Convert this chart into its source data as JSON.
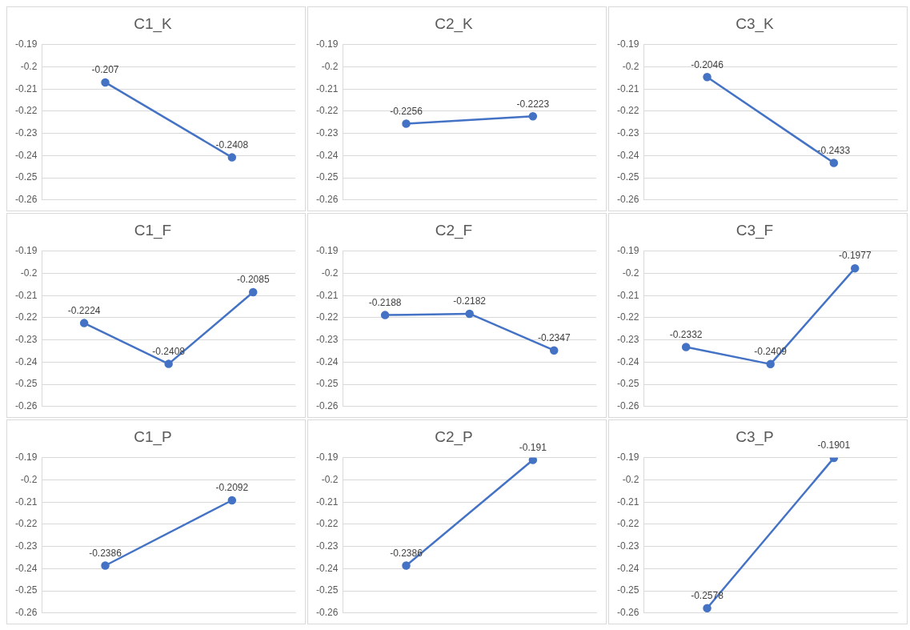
{
  "chart_data": [
    {
      "type": "line",
      "title": "C1_K",
      "categories": [
        null,
        null
      ],
      "series": [
        {
          "color": "#4472c4",
          "values": [
            -0.207,
            -0.2408
          ]
        }
      ],
      "ylim": [
        -0.26,
        -0.19
      ],
      "yticks": [
        -0.26,
        -0.25,
        -0.24,
        -0.23,
        -0.22,
        -0.21,
        -0.2,
        -0.19
      ],
      "grid": "y",
      "tick_labels": "y",
      "marker": "circle",
      "data_labels": true
    },
    {
      "type": "line",
      "title": "C2_K",
      "categories": [
        null,
        null
      ],
      "series": [
        {
          "color": "#4472c4",
          "values": [
            -0.2256,
            -0.2223
          ]
        }
      ],
      "ylim": [
        -0.26,
        -0.19
      ],
      "yticks": [
        -0.26,
        -0.25,
        -0.24,
        -0.23,
        -0.22,
        -0.21,
        -0.2,
        -0.19
      ],
      "grid": "y",
      "tick_labels": "y",
      "marker": "circle",
      "data_labels": true
    },
    {
      "type": "line",
      "title": "C3_K",
      "categories": [
        null,
        null
      ],
      "series": [
        {
          "color": "#4472c4",
          "values": [
            -0.2046,
            -0.2433
          ]
        }
      ],
      "ylim": [
        -0.26,
        -0.19
      ],
      "yticks": [
        -0.26,
        -0.25,
        -0.24,
        -0.23,
        -0.22,
        -0.21,
        -0.2,
        -0.19
      ],
      "grid": "y",
      "tick_labels": "y",
      "marker": "circle",
      "data_labels": true
    },
    {
      "type": "line",
      "title": "C1_F",
      "categories": [
        null,
        null,
        null
      ],
      "series": [
        {
          "color": "#4472c4",
          "values": [
            -0.2224,
            -0.2408,
            -0.2085
          ]
        }
      ],
      "ylim": [
        -0.26,
        -0.19
      ],
      "yticks": [
        -0.26,
        -0.25,
        -0.24,
        -0.23,
        -0.22,
        -0.21,
        -0.2,
        -0.19
      ],
      "grid": "y",
      "tick_labels": "y",
      "marker": "circle",
      "data_labels": true
    },
    {
      "type": "line",
      "title": "C2_F",
      "categories": [
        null,
        null,
        null
      ],
      "series": [
        {
          "color": "#4472c4",
          "values": [
            -0.2188,
            -0.2182,
            -0.2347
          ]
        }
      ],
      "ylim": [
        -0.26,
        -0.19
      ],
      "yticks": [
        -0.26,
        -0.25,
        -0.24,
        -0.23,
        -0.22,
        -0.21,
        -0.2,
        -0.19
      ],
      "grid": "y",
      "tick_labels": "y",
      "marker": "circle",
      "data_labels": true
    },
    {
      "type": "line",
      "title": "C3_F",
      "categories": [
        null,
        null,
        null
      ],
      "series": [
        {
          "color": "#4472c4",
          "values": [
            -0.2332,
            -0.2409,
            -0.1977
          ]
        }
      ],
      "ylim": [
        -0.26,
        -0.19
      ],
      "yticks": [
        -0.26,
        -0.25,
        -0.24,
        -0.23,
        -0.22,
        -0.21,
        -0.2,
        -0.19
      ],
      "grid": "y",
      "tick_labels": "y",
      "marker": "circle",
      "data_labels": true
    },
    {
      "type": "line",
      "title": "C1_P",
      "categories": [
        null,
        null
      ],
      "series": [
        {
          "color": "#4472c4",
          "values": [
            -0.2386,
            -0.2092
          ]
        }
      ],
      "ylim": [
        -0.26,
        -0.19
      ],
      "yticks": [
        -0.26,
        -0.25,
        -0.24,
        -0.23,
        -0.22,
        -0.21,
        -0.2,
        -0.19
      ],
      "grid": "y",
      "tick_labels": "y",
      "marker": "circle",
      "data_labels": true
    },
    {
      "type": "line",
      "title": "C2_P",
      "categories": [
        null,
        null
      ],
      "series": [
        {
          "color": "#4472c4",
          "values": [
            -0.2386,
            -0.191
          ]
        }
      ],
      "ylim": [
        -0.26,
        -0.19
      ],
      "yticks": [
        -0.26,
        -0.25,
        -0.24,
        -0.23,
        -0.22,
        -0.21,
        -0.2,
        -0.19
      ],
      "grid": "y",
      "tick_labels": "y",
      "marker": "circle",
      "data_labels": true
    },
    {
      "type": "line",
      "title": "C3_P",
      "categories": [
        null,
        null
      ],
      "series": [
        {
          "color": "#4472c4",
          "values": [
            -0.2578,
            -0.1901
          ]
        }
      ],
      "ylim": [
        -0.26,
        -0.19
      ],
      "yticks": [
        -0.26,
        -0.25,
        -0.24,
        -0.23,
        -0.22,
        -0.21,
        -0.2,
        -0.19
      ],
      "grid": "y",
      "tick_labels": "y",
      "marker": "circle",
      "data_labels": true
    }
  ]
}
